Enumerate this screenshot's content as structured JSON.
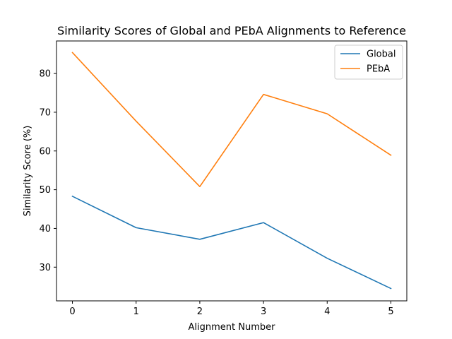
{
  "chart_data": {
    "type": "line",
    "title": "Similarity Scores of Global and PEbA Alignments to Reference",
    "xlabel": "Alignment Number",
    "ylabel": "Similarity Score (%)",
    "x": [
      0,
      1,
      2,
      3,
      4,
      5
    ],
    "xticks": [
      "0",
      "1",
      "2",
      "3",
      "4",
      "5"
    ],
    "yticks": [
      "30",
      "40",
      "50",
      "60",
      "70",
      "80"
    ],
    "xlim": [
      -0.25,
      5.25
    ],
    "ylim": [
      21.3,
      88.4
    ],
    "grid": false,
    "legend_position": "top-right",
    "series": [
      {
        "name": "Global",
        "color": "#1f77b4",
        "values": [
          48.3,
          40.2,
          37.2,
          41.5,
          32.3,
          24.5
        ]
      },
      {
        "name": "PEbA",
        "color": "#ff7f0e",
        "values": [
          85.4,
          67.7,
          50.8,
          74.6,
          69.6,
          58.9
        ]
      }
    ]
  }
}
